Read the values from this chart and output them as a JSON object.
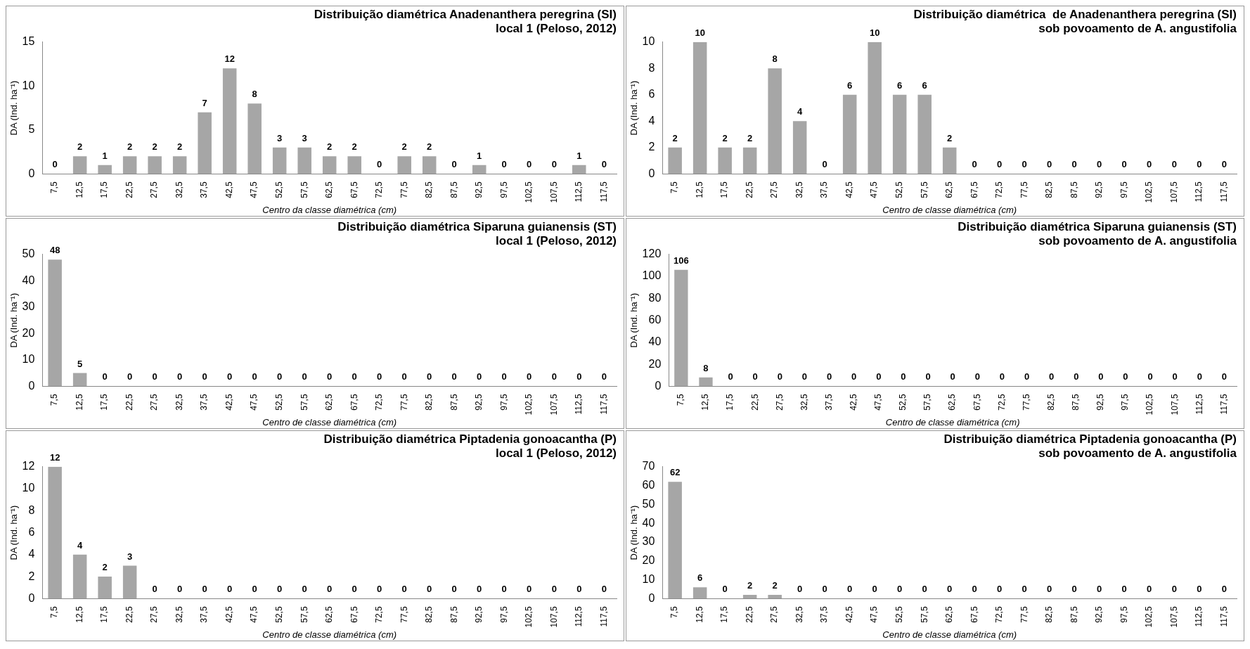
{
  "chart_data": [
    {
      "type": "bar",
      "title": "Distribuição diamétrica Anadenanthera peregrina (SI)",
      "subtitle": "local 1 (Peloso, 2012)",
      "xlabel": "Centro da classe diamétrica (cm)",
      "ylabel": "DA (Ind. ha⁻¹)",
      "categories": [
        "7,5",
        "12,5",
        "17,5",
        "22,5",
        "27,5",
        "32,5",
        "37,5",
        "42,5",
        "47,5",
        "52,5",
        "57,5",
        "62,5",
        "67,5",
        "72,5",
        "77,5",
        "82,5",
        "87,5",
        "92,5",
        "97,5",
        "102,5",
        "107,5",
        "112,5",
        "117,5"
      ],
      "values": [
        0,
        2,
        1,
        2,
        2,
        2,
        7,
        12,
        8,
        3,
        3,
        2,
        2,
        0,
        2,
        2,
        0,
        1,
        0,
        0,
        0,
        1,
        0
      ],
      "color": "#a6a6a6",
      "ylim": [
        0,
        15
      ],
      "yticks": [
        0,
        5,
        10,
        15
      ],
      "data_labels": true
    },
    {
      "type": "bar",
      "title": "Distribuição diamétrica  de Anadenanthera peregrina (SI)",
      "subtitle": "sob povoamento de A. angustifolia",
      "xlabel": "Centro de classe diamétrica (cm)",
      "ylabel": "DA (Ind. ha⁻¹)",
      "categories": [
        "7,5",
        "12,5",
        "17,5",
        "22,5",
        "27,5",
        "32,5",
        "37,5",
        "42,5",
        "47,5",
        "52,5",
        "57,5",
        "62,5",
        "67,5",
        "72,5",
        "77,5",
        "82,5",
        "87,5",
        "92,5",
        "97,5",
        "102,5",
        "107,5",
        "112,5",
        "117,5"
      ],
      "values": [
        2,
        10,
        2,
        2,
        8,
        4,
        0,
        6,
        10,
        6,
        6,
        2,
        0,
        0,
        0,
        0,
        0,
        0,
        0,
        0,
        0,
        0,
        0
      ],
      "color": "#a6a6a6",
      "ylim": [
        0,
        10
      ],
      "yticks": [
        0,
        2,
        4,
        6,
        8,
        10
      ],
      "data_labels": true
    },
    {
      "type": "bar",
      "title": "Distribuição diamétrica Siparuna guianensis (ST)",
      "subtitle": "local 1 (Peloso, 2012)",
      "xlabel": "Centro de classe diamétrica (cm)",
      "ylabel": "DA (Ind. ha⁻¹)",
      "categories": [
        "7,5",
        "12,5",
        "17,5",
        "22,5",
        "27,5",
        "32,5",
        "37,5",
        "42,5",
        "47,5",
        "52,5",
        "57,5",
        "62,5",
        "67,5",
        "72,5",
        "77,5",
        "82,5",
        "87,5",
        "92,5",
        "97,5",
        "102,5",
        "107,5",
        "112,5",
        "117,5"
      ],
      "values": [
        48,
        5,
        0,
        0,
        0,
        0,
        0,
        0,
        0,
        0,
        0,
        0,
        0,
        0,
        0,
        0,
        0,
        0,
        0,
        0,
        0,
        0,
        0
      ],
      "color": "#a6a6a6",
      "ylim": [
        0,
        50
      ],
      "yticks": [
        0,
        10,
        20,
        30,
        40,
        50
      ],
      "data_labels": true
    },
    {
      "type": "bar",
      "title": "Distribuição diamétrica Siparuna guianensis (ST)",
      "subtitle": "sob povoamento de A. angustifolia",
      "xlabel": "Centro de classe diamétrica (cm)",
      "ylabel": "DA (Ind. ha⁻¹)",
      "categories": [
        "7,5",
        "12,5",
        "17,5",
        "22,5",
        "27,5",
        "32,5",
        "37,5",
        "42,5",
        "47,5",
        "52,5",
        "57,5",
        "62,5",
        "67,5",
        "72,5",
        "77,5",
        "82,5",
        "87,5",
        "92,5",
        "97,5",
        "102,5",
        "107,5",
        "112,5",
        "117,5"
      ],
      "values": [
        106,
        8,
        0,
        0,
        0,
        0,
        0,
        0,
        0,
        0,
        0,
        0,
        0,
        0,
        0,
        0,
        0,
        0,
        0,
        0,
        0,
        0,
        0
      ],
      "color": "#a6a6a6",
      "ylim": [
        0,
        120
      ],
      "yticks": [
        0,
        20,
        40,
        60,
        80,
        100,
        120
      ],
      "data_labels": true
    },
    {
      "type": "bar",
      "title": "Distribuição diamétrica Piptadenia gonoacantha (P)",
      "subtitle": "local 1 (Peloso, 2012)",
      "xlabel": "Centro de classe diamétrica (cm)",
      "ylabel": "DA (Ind. ha⁻¹)",
      "categories": [
        "7,5",
        "12,5",
        "17,5",
        "22,5",
        "27,5",
        "32,5",
        "37,5",
        "42,5",
        "47,5",
        "52,5",
        "57,5",
        "62,5",
        "67,5",
        "72,5",
        "77,5",
        "82,5",
        "87,5",
        "92,5",
        "97,5",
        "102,5",
        "107,5",
        "112,5",
        "117,5"
      ],
      "values": [
        12,
        4,
        2,
        3,
        0,
        0,
        0,
        0,
        0,
        0,
        0,
        0,
        0,
        0,
        0,
        0,
        0,
        0,
        0,
        0,
        0,
        0,
        0
      ],
      "color": "#a6a6a6",
      "ylim": [
        0,
        12
      ],
      "yticks": [
        0,
        2,
        4,
        6,
        8,
        10,
        12
      ],
      "data_labels": true
    },
    {
      "type": "bar",
      "title": "Distribuição diamétrica Piptadenia gonoacantha (P)",
      "subtitle": "sob povoamento de A. angustifolia",
      "xlabel": "Centro de classe diamétrica (cm)",
      "ylabel": "DA (Ind. ha⁻¹)",
      "categories": [
        "7,5",
        "12,5",
        "17,5",
        "22,5",
        "27,5",
        "32,5",
        "37,5",
        "42,5",
        "47,5",
        "52,5",
        "57,5",
        "62,5",
        "67,5",
        "72,5",
        "77,5",
        "82,5",
        "87,5",
        "92,5",
        "97,5",
        "102,5",
        "107,5",
        "112,5",
        "117,5"
      ],
      "values": [
        62,
        6,
        0,
        2,
        2,
        0,
        0,
        0,
        0,
        0,
        0,
        0,
        0,
        0,
        0,
        0,
        0,
        0,
        0,
        0,
        0,
        0,
        0
      ],
      "color": "#a6a6a6",
      "ylim": [
        0,
        70
      ],
      "yticks": [
        0,
        10,
        20,
        30,
        40,
        50,
        60,
        70
      ],
      "data_labels": true
    }
  ]
}
